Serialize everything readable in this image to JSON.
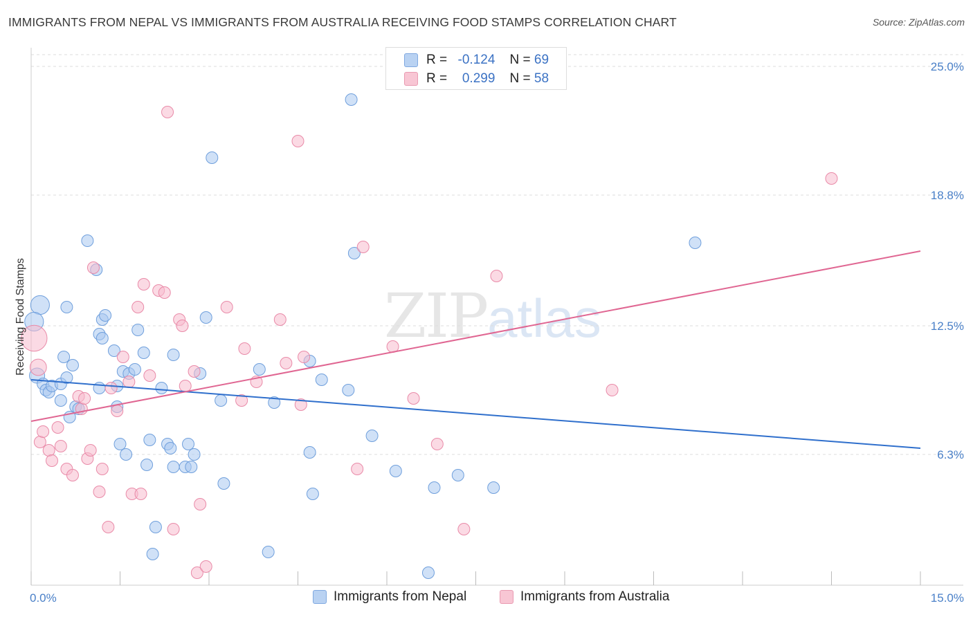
{
  "title": "IMMIGRANTS FROM NEPAL VS IMMIGRANTS FROM AUSTRALIA RECEIVING FOOD STAMPS CORRELATION CHART",
  "source": "Source: ZipAtlas.com",
  "watermark": {
    "zip": "ZIP",
    "atlas": "atlas"
  },
  "legend": {
    "rows": [
      {
        "r_label": "R =",
        "r_value": "-0.124",
        "n_label": "N =",
        "n_value": "69"
      },
      {
        "r_label": "R =",
        "r_value": "0.299",
        "n_label": "N =",
        "n_value": "58"
      }
    ]
  },
  "colors": {
    "blue_fill": "#a9c8f0",
    "blue_stroke": "#6f9fdc",
    "blue_line": "#2f6fcc",
    "pink_fill": "#f7bccd",
    "pink_stroke": "#e98aa8",
    "pink_line": "#e06692",
    "grid": "#dddddd",
    "tick_text": "#4a80c8"
  },
  "chart_data": {
    "type": "scatter",
    "title": "IMMIGRANTS FROM NEPAL VS IMMIGRANTS FROM AUSTRALIA RECEIVING FOOD STAMPS CORRELATION CHART",
    "xlabel": "",
    "ylabel": "Receiving Food Stamps",
    "xlim": [
      0,
      15
    ],
    "ylim": [
      0,
      25
    ],
    "x_tick_labels": [
      "0.0%",
      "15.0%"
    ],
    "y_ticks": [
      6.3,
      12.5,
      18.8,
      25.0
    ],
    "y_tick_labels": [
      "6.3%",
      "12.5%",
      "18.8%",
      "25.0%"
    ],
    "grid": true,
    "legend_position": "top-center",
    "series": [
      {
        "name": "Immigrants from Nepal",
        "color": "#a9c8f0",
        "trend": {
          "x": [
            0,
            15
          ],
          "y": [
            9.9,
            6.6
          ]
        },
        "points": [
          [
            0.15,
            13.5,
            1.6
          ],
          [
            0.05,
            12.7,
            1.6
          ],
          [
            0.1,
            10.1,
            1.3
          ],
          [
            0.2,
            9.7,
            1.0
          ],
          [
            0.25,
            9.4,
            1.0
          ],
          [
            0.3,
            9.3,
            1.0
          ],
          [
            0.35,
            9.6,
            1.0
          ],
          [
            0.5,
            9.7,
            1.0
          ],
          [
            0.5,
            8.9,
            1.0
          ],
          [
            0.55,
            11.0,
            1.0
          ],
          [
            0.6,
            13.4,
            1.0
          ],
          [
            0.6,
            10.0,
            1.0
          ],
          [
            0.65,
            8.1,
            1.0
          ],
          [
            0.7,
            10.6,
            1.0
          ],
          [
            0.75,
            8.6,
            1.0
          ],
          [
            0.8,
            8.5,
            1.0
          ],
          [
            0.95,
            16.6,
            1.0
          ],
          [
            1.1,
            15.2,
            1.0
          ],
          [
            1.15,
            12.1,
            1.0
          ],
          [
            1.15,
            9.5,
            1.0
          ],
          [
            1.2,
            12.8,
            1.0
          ],
          [
            1.2,
            11.9,
            1.0
          ],
          [
            1.25,
            13.0,
            1.0
          ],
          [
            1.4,
            11.3,
            1.0
          ],
          [
            1.45,
            8.6,
            1.0
          ],
          [
            1.45,
            9.6,
            1.0
          ],
          [
            1.5,
            6.8,
            1.0
          ],
          [
            1.55,
            10.3,
            1.0
          ],
          [
            1.6,
            6.3,
            1.0
          ],
          [
            1.65,
            10.2,
            1.0
          ],
          [
            1.75,
            10.4,
            1.0
          ],
          [
            1.8,
            12.3,
            1.0
          ],
          [
            1.9,
            11.2,
            1.0
          ],
          [
            1.95,
            5.8,
            1.0
          ],
          [
            2.0,
            7.0,
            1.0
          ],
          [
            2.05,
            1.5,
            1.0
          ],
          [
            2.1,
            2.8,
            1.0
          ],
          [
            2.2,
            9.5,
            1.0
          ],
          [
            2.3,
            6.8,
            1.0
          ],
          [
            2.35,
            6.6,
            1.0
          ],
          [
            2.4,
            5.7,
            1.0
          ],
          [
            2.4,
            11.1,
            1.0
          ],
          [
            2.6,
            5.7,
            1.0
          ],
          [
            2.65,
            6.8,
            1.0
          ],
          [
            2.7,
            5.7,
            1.0
          ],
          [
            2.75,
            6.3,
            1.0
          ],
          [
            2.85,
            10.2,
            1.0
          ],
          [
            2.95,
            12.9,
            1.0
          ],
          [
            3.05,
            20.6,
            1.0
          ],
          [
            3.2,
            8.9,
            1.0
          ],
          [
            3.25,
            4.9,
            1.0
          ],
          [
            3.85,
            10.4,
            1.0
          ],
          [
            4.0,
            1.6,
            1.0
          ],
          [
            4.1,
            8.8,
            1.0
          ],
          [
            4.7,
            10.8,
            1.0
          ],
          [
            4.7,
            6.4,
            1.0
          ],
          [
            4.75,
            4.4,
            1.0
          ],
          [
            4.9,
            9.9,
            1.0
          ],
          [
            5.35,
            9.4,
            1.0
          ],
          [
            5.4,
            23.4,
            1.0
          ],
          [
            5.45,
            16.0,
            1.0
          ],
          [
            5.75,
            7.2,
            1.0
          ],
          [
            6.15,
            5.5,
            1.0
          ],
          [
            6.7,
            0.6,
            1.0
          ],
          [
            6.8,
            4.7,
            1.0
          ],
          [
            7.2,
            5.3,
            1.0
          ],
          [
            7.8,
            4.7,
            1.0
          ],
          [
            11.2,
            16.5,
            1.0
          ]
        ]
      },
      {
        "name": "Immigrants from Australia",
        "color": "#f7bccd",
        "trend": {
          "x": [
            0,
            15
          ],
          "y": [
            7.9,
            16.1
          ]
        },
        "points": [
          [
            0.05,
            11.9,
            2.2
          ],
          [
            0.12,
            10.5,
            1.4
          ],
          [
            0.15,
            6.9,
            1.0
          ],
          [
            0.2,
            7.4,
            1.0
          ],
          [
            0.3,
            6.5,
            1.0
          ],
          [
            0.35,
            6.0,
            1.0
          ],
          [
            0.45,
            7.6,
            1.0
          ],
          [
            0.5,
            6.7,
            1.0
          ],
          [
            0.6,
            5.6,
            1.0
          ],
          [
            0.7,
            5.3,
            1.0
          ],
          [
            0.8,
            9.1,
            1.0
          ],
          [
            0.85,
            8.5,
            1.0
          ],
          [
            0.9,
            9.0,
            1.0
          ],
          [
            0.95,
            6.1,
            1.0
          ],
          [
            1.0,
            6.5,
            1.0
          ],
          [
            1.05,
            15.3,
            1.0
          ],
          [
            1.15,
            4.5,
            1.0
          ],
          [
            1.2,
            5.6,
            1.0
          ],
          [
            1.3,
            2.8,
            1.0
          ],
          [
            1.35,
            9.5,
            1.0
          ],
          [
            1.45,
            8.4,
            1.0
          ],
          [
            1.55,
            11.0,
            1.0
          ],
          [
            1.65,
            9.8,
            1.0
          ],
          [
            1.7,
            4.4,
            1.0
          ],
          [
            1.8,
            13.4,
            1.0
          ],
          [
            1.85,
            4.4,
            1.0
          ],
          [
            1.9,
            14.5,
            1.0
          ],
          [
            2.0,
            10.1,
            1.0
          ],
          [
            2.15,
            14.2,
            1.0
          ],
          [
            2.25,
            14.1,
            1.0
          ],
          [
            2.3,
            22.8,
            1.0
          ],
          [
            2.4,
            2.7,
            1.0
          ],
          [
            2.5,
            12.8,
            1.0
          ],
          [
            2.55,
            12.5,
            1.0
          ],
          [
            2.6,
            9.6,
            1.0
          ],
          [
            2.75,
            10.3,
            1.0
          ],
          [
            2.8,
            0.6,
            1.0
          ],
          [
            2.85,
            3.9,
            1.0
          ],
          [
            2.95,
            0.9,
            1.0
          ],
          [
            3.3,
            13.4,
            1.0
          ],
          [
            3.55,
            8.9,
            1.0
          ],
          [
            3.6,
            11.4,
            1.0
          ],
          [
            3.8,
            9.8,
            1.0
          ],
          [
            4.2,
            12.8,
            1.0
          ],
          [
            4.3,
            10.7,
            1.0
          ],
          [
            4.5,
            21.4,
            1.0
          ],
          [
            4.55,
            8.7,
            1.0
          ],
          [
            4.6,
            11.0,
            1.0
          ],
          [
            5.5,
            5.6,
            1.0
          ],
          [
            5.6,
            16.3,
            1.0
          ],
          [
            6.1,
            11.5,
            1.0
          ],
          [
            6.45,
            9.0,
            1.0
          ],
          [
            6.85,
            6.8,
            1.0
          ],
          [
            7.3,
            2.7,
            1.0
          ],
          [
            7.85,
            14.9,
            1.0
          ],
          [
            9.8,
            9.4,
            1.0
          ],
          [
            13.5,
            19.6,
            1.0
          ]
        ]
      }
    ]
  }
}
